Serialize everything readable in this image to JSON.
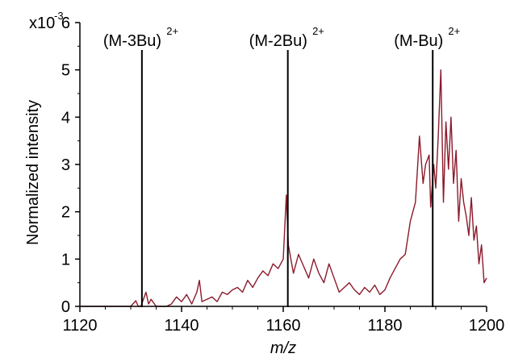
{
  "chart_data": {
    "type": "line",
    "title": "",
    "xlabel": "m/z",
    "ylabel": "Normalized intensity",
    "xlim": [
      1120,
      1200
    ],
    "ylim": [
      0,
      6
    ],
    "x_ticks": [
      1120,
      1140,
      1160,
      1180,
      1200
    ],
    "x_tick_labels": [
      "1120",
      "1140",
      "1160",
      "1180",
      "1200"
    ],
    "y_ticks": [
      0,
      1,
      2,
      3,
      4,
      5,
      6
    ],
    "y_tick_labels": [
      "0",
      "1",
      "2",
      "3",
      "4",
      "5",
      "6"
    ],
    "y_multiplier_label": "x10",
    "y_multiplier_exponent": "-3",
    "grid": false,
    "series": [
      {
        "color": "#8b1a2b",
        "x": [
          1120,
          1125,
          1130,
          1131,
          1131.5,
          1132,
          1133,
          1133.5,
          1134,
          1135,
          1137,
          1138,
          1139,
          1140,
          1141,
          1142,
          1143,
          1143.5,
          1144,
          1145,
          1146,
          1147,
          1148,
          1149,
          1150,
          1151,
          1152,
          1153,
          1154,
          1155,
          1156,
          1157,
          1158,
          1159,
          1160,
          1160.6,
          1161,
          1162,
          1163,
          1164,
          1165,
          1166,
          1167,
          1168,
          1169,
          1170,
          1171,
          1172,
          1173,
          1174,
          1175,
          1176,
          1177,
          1178,
          1179,
          1180,
          1181,
          1182,
          1183,
          1184,
          1185,
          1186,
          1186.8,
          1187.5,
          1188,
          1188.7,
          1189,
          1189.6,
          1190,
          1190.5,
          1191,
          1191.5,
          1192,
          1192.5,
          1193,
          1193.5,
          1194,
          1194.5,
          1195,
          1195.5,
          1196,
          1196.5,
          1197,
          1197.5,
          1198,
          1198.5,
          1199,
          1199.5,
          1200
        ],
        "y": [
          0,
          0,
          0,
          0.12,
          0,
          0,
          0.3,
          0.05,
          0.15,
          0,
          0,
          0.05,
          0.2,
          0.1,
          0.25,
          0.05,
          0.3,
          0.55,
          0.1,
          0.15,
          0.2,
          0.1,
          0.3,
          0.25,
          0.35,
          0.4,
          0.3,
          0.55,
          0.4,
          0.6,
          0.75,
          0.65,
          0.9,
          0.8,
          1.0,
          2.35,
          1.3,
          0.7,
          1.1,
          0.85,
          0.6,
          1.0,
          0.7,
          0.5,
          0.9,
          0.6,
          0.3,
          0.4,
          0.5,
          0.35,
          0.25,
          0.4,
          0.3,
          0.45,
          0.25,
          0.35,
          0.6,
          0.8,
          1.0,
          1.1,
          1.8,
          2.2,
          3.6,
          2.6,
          3.0,
          3.2,
          2.1,
          3.0,
          2.5,
          3.6,
          5.0,
          2.2,
          3.9,
          2.9,
          4.0,
          2.6,
          3.3,
          1.8,
          2.7,
          2.2,
          1.9,
          1.5,
          2.3,
          1.4,
          1.7,
          0.9,
          1.3,
          0.5,
          0.6
        ]
      }
    ],
    "annotations": [
      {
        "x": 1132.2,
        "label": "(M-3Bu)",
        "sup": "2+"
      },
      {
        "x": 1160.9,
        "label": "(M-2Bu)",
        "sup": "2+"
      },
      {
        "x": 1189.4,
        "label": "(M-Bu)",
        "sup": "2+"
      }
    ]
  }
}
